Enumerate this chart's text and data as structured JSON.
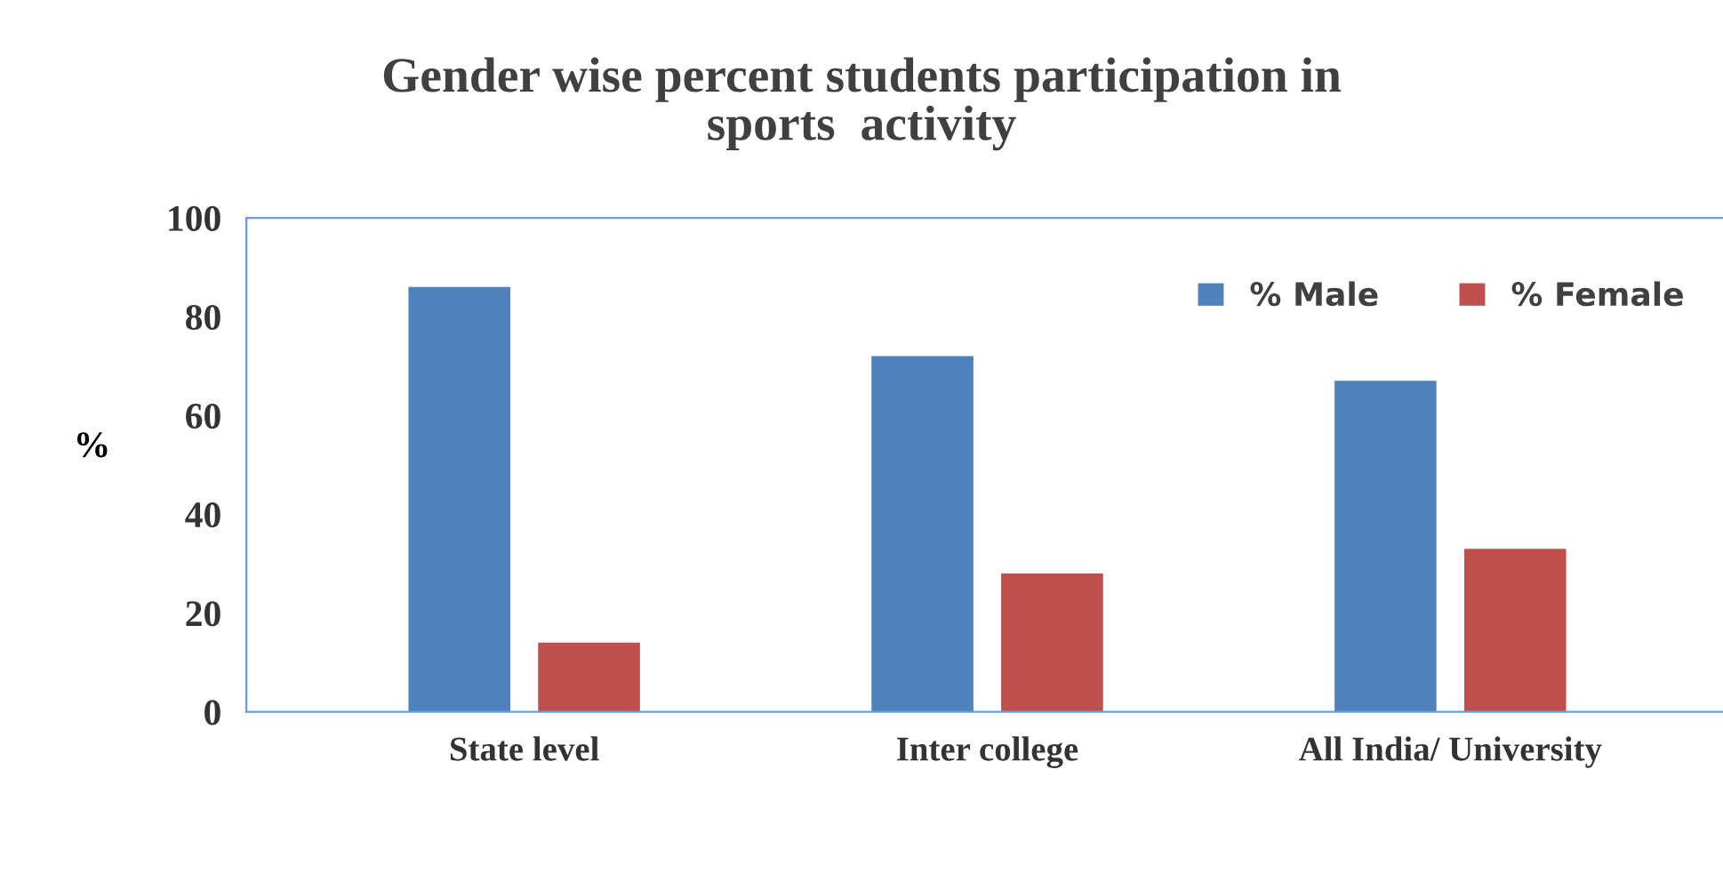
{
  "chart_data": {
    "type": "bar",
    "title": "Gender wise percent students participation in\nsports  activity",
    "ylabel": "%",
    "categories": [
      "State level",
      "Inter college",
      "All India/ University"
    ],
    "series": [
      {
        "name": "% Male",
        "color": "#4f81bd",
        "values": [
          86,
          72,
          67
        ]
      },
      {
        "name": "% Female",
        "color": "#c0504d",
        "values": [
          14,
          28,
          33
        ]
      }
    ],
    "ylim": [
      0,
      100
    ],
    "yticks": [
      0,
      20,
      40,
      60,
      80,
      100
    ],
    "grid": false,
    "legend": "top right"
  }
}
